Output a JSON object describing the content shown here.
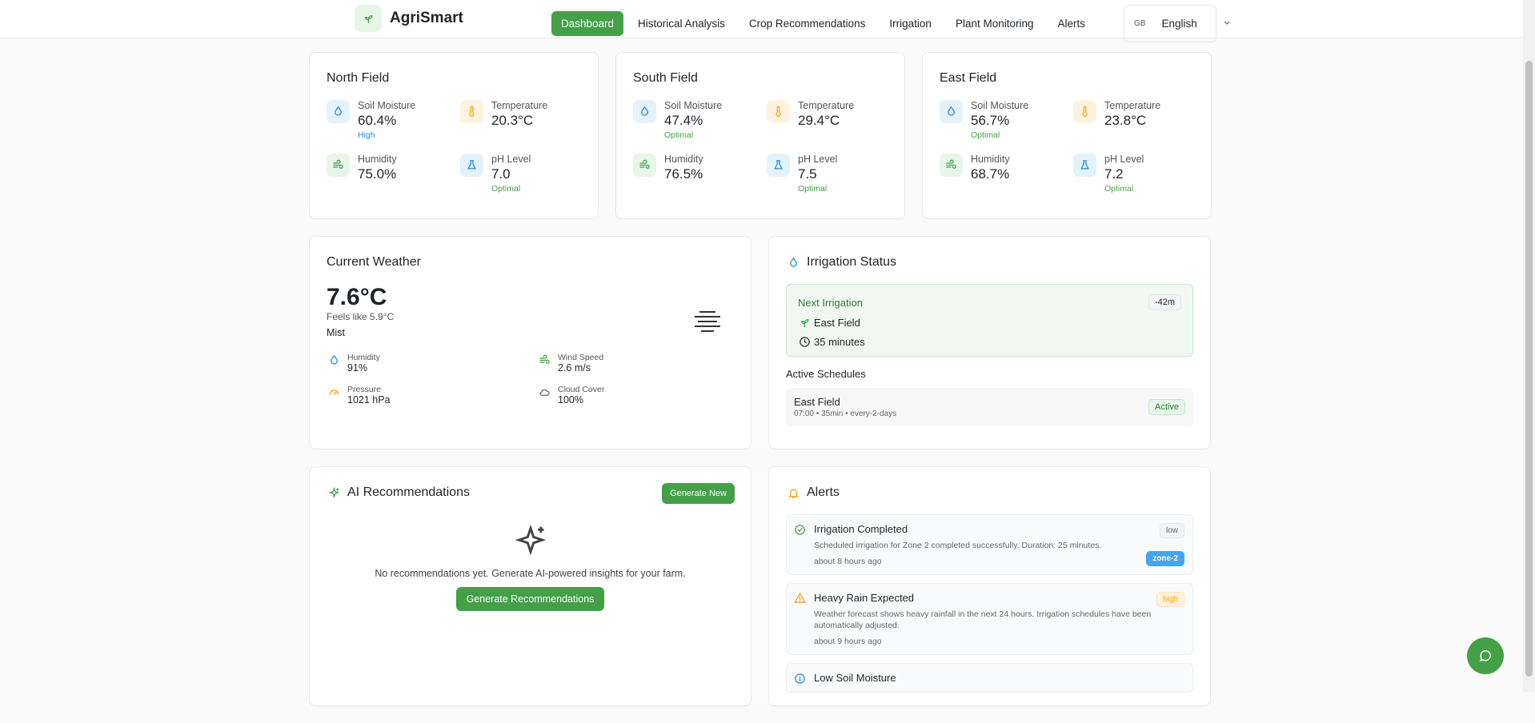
{
  "header": {
    "brand": "AgriSmart",
    "nav": [
      "Dashboard",
      "Historical Analysis",
      "Crop Recommendations",
      "Irrigation",
      "Plant Monitoring",
      "Alerts"
    ],
    "language_flag": "GB",
    "language": "English"
  },
  "fields": [
    {
      "name": "North Field",
      "metrics": [
        {
          "label": "Soil Moisture",
          "value": "60.4%",
          "status": "High"
        },
        {
          "label": "Temperature",
          "value": "20.3°C"
        },
        {
          "label": "Humidity",
          "value": "75.0%"
        },
        {
          "label": "pH Level",
          "value": "7.0",
          "status": "Optimal"
        }
      ]
    },
    {
      "name": "South Field",
      "metrics": [
        {
          "label": "Soil Moisture",
          "value": "47.4%",
          "status": "Optimal"
        },
        {
          "label": "Temperature",
          "value": "29.4°C"
        },
        {
          "label": "Humidity",
          "value": "76.5%"
        },
        {
          "label": "pH Level",
          "value": "7.5",
          "status": "Optimal"
        }
      ]
    },
    {
      "name": "East Field",
      "metrics": [
        {
          "label": "Soil Moisture",
          "value": "56.7%",
          "status": "Optimal"
        },
        {
          "label": "Temperature",
          "value": "23.8°C"
        },
        {
          "label": "Humidity",
          "value": "68.7%"
        },
        {
          "label": "pH Level",
          "value": "7.2",
          "status": "Optimal"
        }
      ]
    }
  ],
  "weather": {
    "title": "Current Weather",
    "temperature": "7.6°C",
    "feels_like": "Feels like 5.9°C",
    "condition": "Mist",
    "stats": [
      {
        "label": "Humidity",
        "value": "91%"
      },
      {
        "label": "Wind Speed",
        "value": "2.6 m/s"
      },
      {
        "label": "Pressure",
        "value": "1021 hPa"
      },
      {
        "label": "Cloud Cover",
        "value": "100%"
      }
    ]
  },
  "irrigation": {
    "title": "Irrigation Status",
    "next": {
      "label": "Next Irrigation",
      "badge": "-42m",
      "field": "East Field",
      "duration": "35 minutes"
    },
    "schedules_title": "Active Schedules",
    "schedules": [
      {
        "field": "East Field",
        "details": "07:00 • 35min • every-2-days",
        "status": "Active"
      }
    ]
  },
  "ai": {
    "title": "AI Recommendations",
    "button": "Generate New",
    "empty": "No recommendations yet. Generate AI-powered insights for your farm.",
    "cta": "Generate Recommendations"
  },
  "alerts": {
    "title": "Alerts",
    "items": [
      {
        "title": "Irrigation Completed",
        "description": "Scheduled irrigation for Zone 2 completed successfully. Duration: 25 minutes.",
        "time": "about 8 hours ago",
        "severity": "low",
        "tag": "zone-2"
      },
      {
        "title": "Heavy Rain Expected",
        "description": "Weather forecast shows heavy rainfall in the next 24 hours. Irrigation schedules have been automatically adjusted.",
        "time": "about 9 hours ago",
        "severity": "high"
      },
      {
        "title": "Low Soil Moisture"
      }
    ]
  }
}
